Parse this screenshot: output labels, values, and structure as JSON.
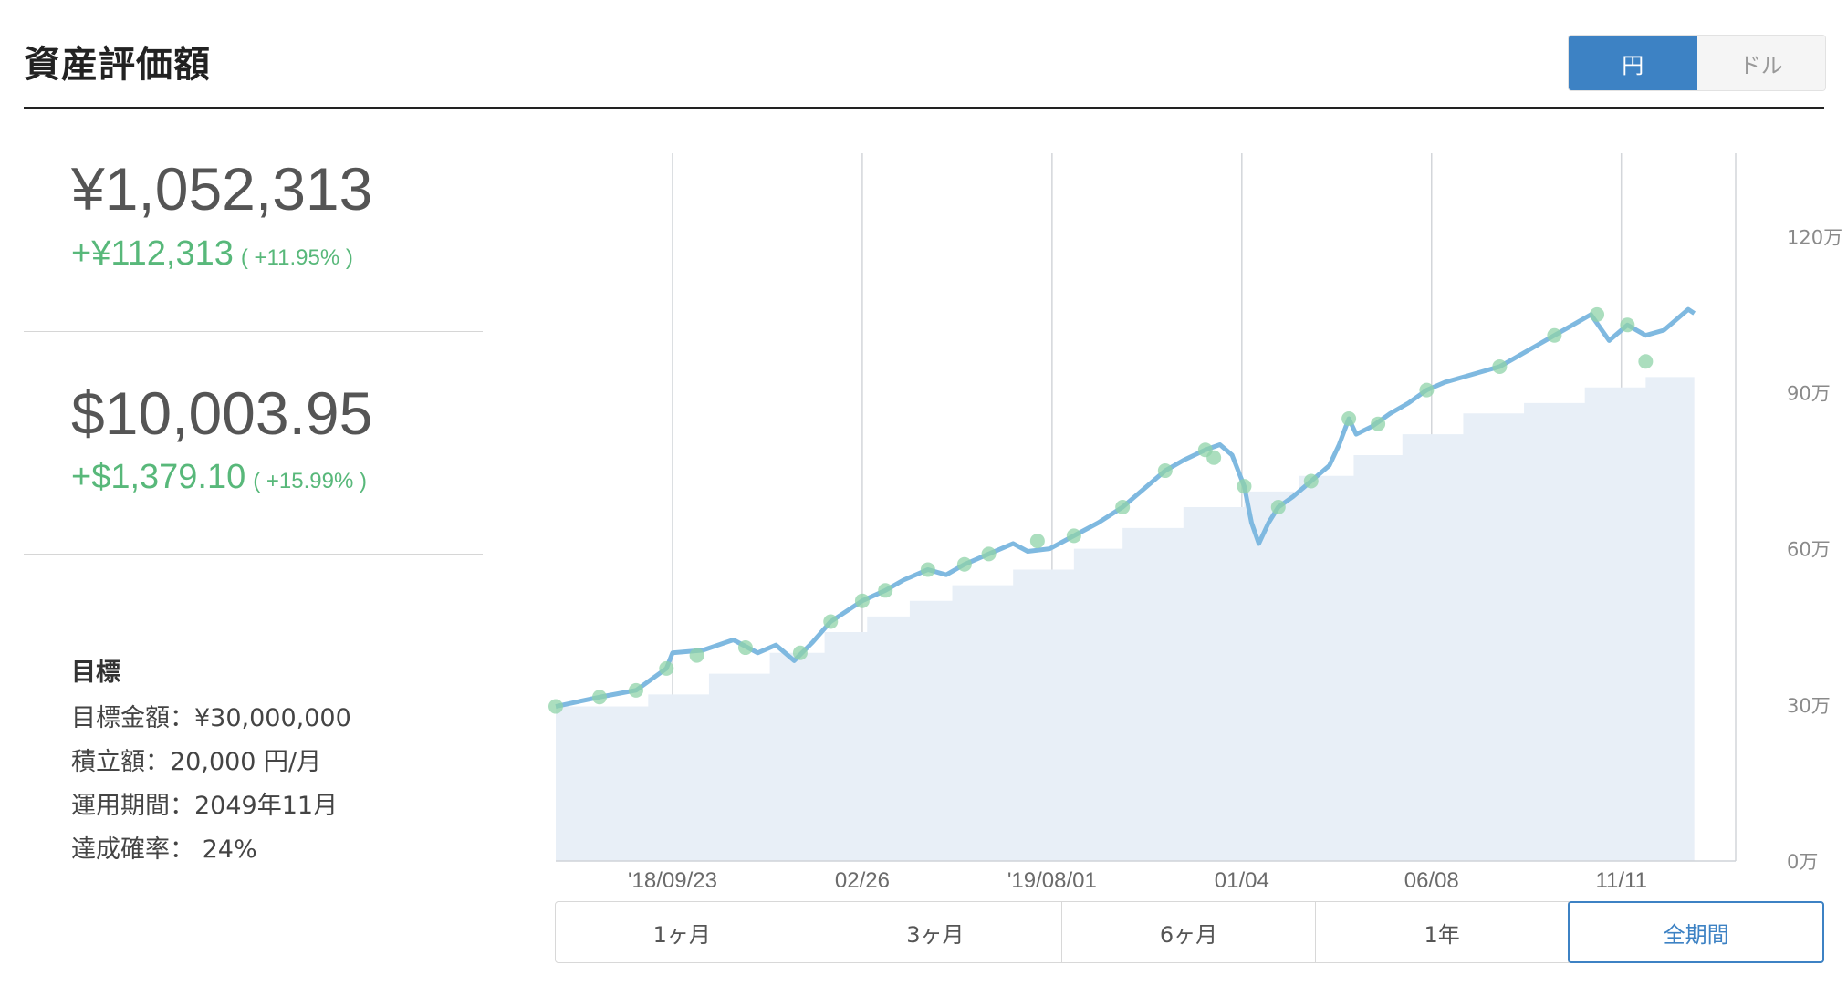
{
  "header": {
    "title": "資産評価額"
  },
  "currency_toggle": {
    "options": [
      "円",
      "ドル"
    ],
    "selected": "円"
  },
  "jpy": {
    "value": "¥1,052,313",
    "gain": "+¥112,313",
    "gain_pct": "( +11.95% )"
  },
  "usd": {
    "value": "$10,003.95",
    "gain": "+$1,379.10",
    "gain_pct": "( +15.99% )"
  },
  "goal": {
    "title": "目標",
    "target": "目標金額：¥30,000,000",
    "monthly": "積立額：20,000 円/月",
    "period": "運用期間：2049年11月",
    "probability": "達成確率：  24%"
  },
  "range_buttons": [
    "1ヶ月",
    "3ヶ月",
    "6ヶ月",
    "1年",
    "全期間"
  ],
  "range_selected": "全期間",
  "colors": {
    "accent": "#3d82c4",
    "gain": "#58b87a",
    "line": "#7fb9e0",
    "area": "#e8eff7",
    "marker": "#8fd3a8"
  },
  "chart_data": {
    "type": "line",
    "title": "",
    "xlabel": "",
    "ylabel": "",
    "x_ticks": [
      "'18/09/23",
      "02/26",
      "'19/08/01",
      "01/04",
      "06/08",
      "11/11"
    ],
    "y_ticks": [
      "0万",
      "30万",
      "60万",
      "90万",
      "120万"
    ],
    "ylim": [
      0,
      1360000
    ],
    "grid": "vertical",
    "x_range_days": [
      -96,
      874
    ],
    "series": [
      {
        "role": "valuation",
        "points": [
          [
            -96,
            297000
          ],
          [
            -60,
            315000
          ],
          [
            -30,
            328000
          ],
          [
            -5,
            370000
          ],
          [
            0,
            400000
          ],
          [
            25,
            405000
          ],
          [
            50,
            425000
          ],
          [
            70,
            400000
          ],
          [
            85,
            415000
          ],
          [
            100,
            385000
          ],
          [
            115,
            420000
          ],
          [
            130,
            460000
          ],
          [
            156,
            500000
          ],
          [
            175,
            520000
          ],
          [
            190,
            540000
          ],
          [
            210,
            560000
          ],
          [
            225,
            550000
          ],
          [
            240,
            570000
          ],
          [
            260,
            590000
          ],
          [
            280,
            610000
          ],
          [
            292,
            595000
          ],
          [
            310,
            600000
          ],
          [
            330,
            625000
          ],
          [
            350,
            650000
          ],
          [
            370,
            680000
          ],
          [
            390,
            720000
          ],
          [
            405,
            750000
          ],
          [
            420,
            770000
          ],
          [
            438,
            790000
          ],
          [
            450,
            800000
          ],
          [
            460,
            780000
          ],
          [
            470,
            720000
          ],
          [
            476,
            650000
          ],
          [
            482,
            610000
          ],
          [
            490,
            650000
          ],
          [
            498,
            680000
          ],
          [
            510,
            700000
          ],
          [
            520,
            720000
          ],
          [
            530,
            740000
          ],
          [
            540,
            760000
          ],
          [
            548,
            800000
          ],
          [
            556,
            850000
          ],
          [
            562,
            820000
          ],
          [
            575,
            835000
          ],
          [
            590,
            860000
          ],
          [
            605,
            880000
          ],
          [
            620,
            905000
          ],
          [
            635,
            920000
          ],
          [
            650,
            930000
          ],
          [
            665,
            940000
          ],
          [
            680,
            950000
          ],
          [
            695,
            970000
          ],
          [
            710,
            990000
          ],
          [
            725,
            1010000
          ],
          [
            740,
            1030000
          ],
          [
            755,
            1050000
          ],
          [
            770,
            1000000
          ],
          [
            785,
            1030000
          ],
          [
            800,
            1010000
          ],
          [
            815,
            1020000
          ],
          [
            825,
            1040000
          ],
          [
            835,
            1060000
          ],
          [
            840,
            1052313
          ]
        ]
      },
      {
        "role": "principal",
        "points": [
          [
            -96,
            297000
          ],
          [
            -20,
            320000
          ],
          [
            30,
            360000
          ],
          [
            80,
            400000
          ],
          [
            125,
            440000
          ],
          [
            160,
            470000
          ],
          [
            195,
            500000
          ],
          [
            230,
            530000
          ],
          [
            280,
            560000
          ],
          [
            330,
            600000
          ],
          [
            370,
            640000
          ],
          [
            420,
            680000
          ],
          [
            470,
            710000
          ],
          [
            515,
            740000
          ],
          [
            560,
            780000
          ],
          [
            600,
            820000
          ],
          [
            650,
            860000
          ],
          [
            700,
            880000
          ],
          [
            750,
            910000
          ],
          [
            800,
            930000
          ],
          [
            840,
            940000
          ]
        ]
      }
    ],
    "markers": [
      [
        -96,
        297000
      ],
      [
        -60,
        315000
      ],
      [
        -30,
        328000
      ],
      [
        -5,
        370000
      ],
      [
        20,
        395000
      ],
      [
        60,
        410000
      ],
      [
        105,
        400000
      ],
      [
        130,
        460000
      ],
      [
        156,
        500000
      ],
      [
        175,
        520000
      ],
      [
        210,
        560000
      ],
      [
        240,
        570000
      ],
      [
        260,
        590000
      ],
      [
        300,
        615000
      ],
      [
        330,
        625000
      ],
      [
        370,
        680000
      ],
      [
        405,
        750000
      ],
      [
        438,
        790000
      ],
      [
        445,
        775000
      ],
      [
        470,
        720000
      ],
      [
        498,
        680000
      ],
      [
        525,
        730000
      ],
      [
        556,
        850000
      ],
      [
        580,
        840000
      ],
      [
        620,
        905000
      ],
      [
        680,
        950000
      ],
      [
        725,
        1010000
      ],
      [
        760,
        1050000
      ],
      [
        785,
        1030000
      ],
      [
        800,
        960000
      ]
    ]
  }
}
